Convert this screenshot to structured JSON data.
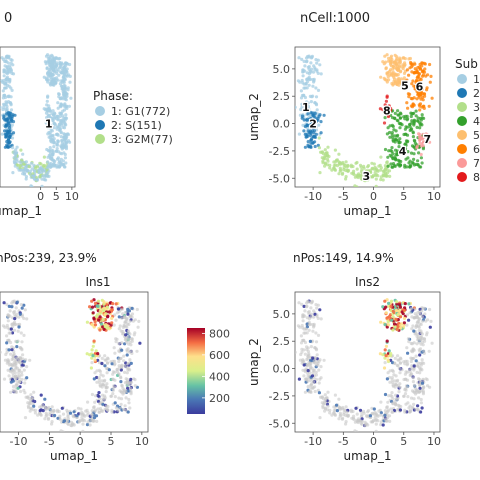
{
  "chart_data": [
    {
      "type": "scatter",
      "id": "p1",
      "title": "0",
      "xlabel": "umap_1",
      "ylabel": "",
      "xticks": [
        0,
        5,
        10
      ],
      "xtick_labels": [
        "0",
        "5",
        "10"
      ],
      "xlim": [
        -13,
        11
      ],
      "ylim": [
        -5.8,
        7
      ],
      "legend": {
        "title": "Phase:",
        "items": [
          {
            "label": "1: G1(772)",
            "color": "#a6cee3"
          },
          {
            "label": "2: S(151)",
            "color": "#1f78b4"
          },
          {
            "label": "3: G2M(77)",
            "color": "#b2df8a"
          }
        ]
      },
      "cluster_labels": [
        {
          "text": "1",
          "x": 2.6,
          "y": 0.0
        }
      ]
    },
    {
      "type": "scatter",
      "id": "p2",
      "title": "nCell:1000",
      "xlabel": "umap_1",
      "ylabel": "umap_2",
      "xticks": [
        -10,
        -5,
        0,
        5,
        10
      ],
      "xtick_labels": [
        "-10",
        "-5",
        "0",
        "5",
        "10"
      ],
      "yticks": [
        5.0,
        2.5,
        0.0,
        -2.5,
        -5.0
      ],
      "ytick_labels": [
        "5.0",
        "2.5",
        "0.0",
        "-2.5",
        "-5.0"
      ],
      "xlim": [
        -13,
        11
      ],
      "ylim": [
        -5.8,
        7
      ],
      "legend": {
        "title": "Sub",
        "items": [
          {
            "label": "1",
            "color": "#a6cee3"
          },
          {
            "label": "2",
            "color": "#1f78b4"
          },
          {
            "label": "3",
            "color": "#b2df8a"
          },
          {
            "label": "4",
            "color": "#33a02c"
          },
          {
            "label": "5",
            "color": "#fdbf6f"
          },
          {
            "label": "6",
            "color": "#ff7f00"
          },
          {
            "label": "7",
            "color": "#fb9a99"
          },
          {
            "label": "8",
            "color": "#e31a1c"
          }
        ]
      },
      "cluster_labels": [
        {
          "text": "1",
          "x": -11.2,
          "y": 1.5
        },
        {
          "text": "2",
          "x": -10.0,
          "y": 0.0
        },
        {
          "text": "3",
          "x": -1.2,
          "y": -4.8
        },
        {
          "text": "4",
          "x": 4.8,
          "y": -2.5
        },
        {
          "text": "5",
          "x": 5.2,
          "y": 3.5
        },
        {
          "text": "6",
          "x": 7.6,
          "y": 3.4
        },
        {
          "text": "7",
          "x": 8.9,
          "y": -1.4
        },
        {
          "text": "8",
          "x": 2.2,
          "y": 1.2
        }
      ]
    },
    {
      "type": "scatter",
      "id": "p3",
      "title": "Ins1",
      "subtitle": "nPos:239, 23.9%",
      "xlabel": "umap_1",
      "ylabel": "",
      "xticks": [
        -10,
        -5,
        0,
        5,
        10
      ],
      "xtick_labels": [
        "-10",
        "-5",
        "0",
        "5",
        "10"
      ],
      "xlim": [
        -13,
        11
      ],
      "ylim": [
        -5.8,
        7
      ],
      "colorbar": {
        "min": 50,
        "max": 850,
        "ticks": [
          200,
          400,
          600,
          800
        ]
      }
    },
    {
      "type": "scatter",
      "id": "p4",
      "title": "Ins2",
      "subtitle": "nPos:149, 14.9%",
      "xlabel": "umap_1",
      "ylabel": "umap_2",
      "xticks": [
        -10,
        -5,
        0,
        5,
        10
      ],
      "xtick_labels": [
        "-10",
        "-5",
        "0",
        "5",
        "10"
      ],
      "yticks": [
        5.0,
        2.5,
        0.0,
        -2.5,
        -5.0
      ],
      "ytick_labels": [
        "5.0",
        "2.5",
        "0.0",
        "-2.5",
        "-5.0"
      ],
      "xlim": [
        -13,
        11
      ],
      "ylim": [
        -5.8,
        7
      ]
    }
  ]
}
